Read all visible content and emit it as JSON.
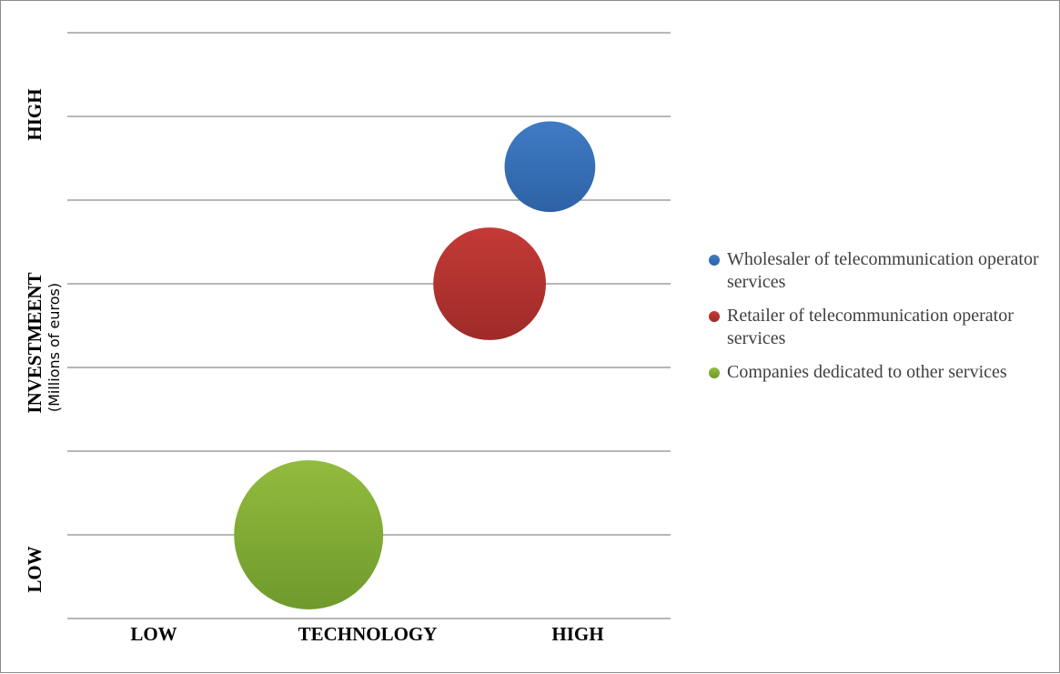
{
  "chart_data": {
    "type": "scatter",
    "subtype": "bubble",
    "x_axis": {
      "title": "TECHNOLOGY",
      "low_label": "LOW",
      "high_label": "HIGH",
      "range": [
        0,
        3
      ]
    },
    "y_axis": {
      "title": "INVESTMEENT",
      "subtitle": "(Millions of euros)",
      "low_label": "LOW",
      "high_label": "HIGH",
      "range": [
        0,
        7
      ],
      "gridlines": [
        0,
        1,
        2,
        3,
        4,
        5,
        6,
        7
      ]
    },
    "grid": true,
    "legend_position": "right",
    "series": [
      {
        "name": "Wholesaler of telecommunication operator services",
        "x": 2.4,
        "y": 5.4,
        "size": 0.37,
        "color": "#3f7bc4",
        "color_dark": "#2e62a6"
      },
      {
        "name": "Retailer of telecommunication operator services",
        "x": 2.1,
        "y": 4.0,
        "size": 0.57,
        "color": "#c43a37",
        "color_dark": "#9e2b28"
      },
      {
        "name": "Companies dedicated to other services",
        "x": 1.2,
        "y": 1.0,
        "size": 1.0,
        "color": "#92bb3e",
        "color_dark": "#6f9a2c"
      }
    ]
  }
}
